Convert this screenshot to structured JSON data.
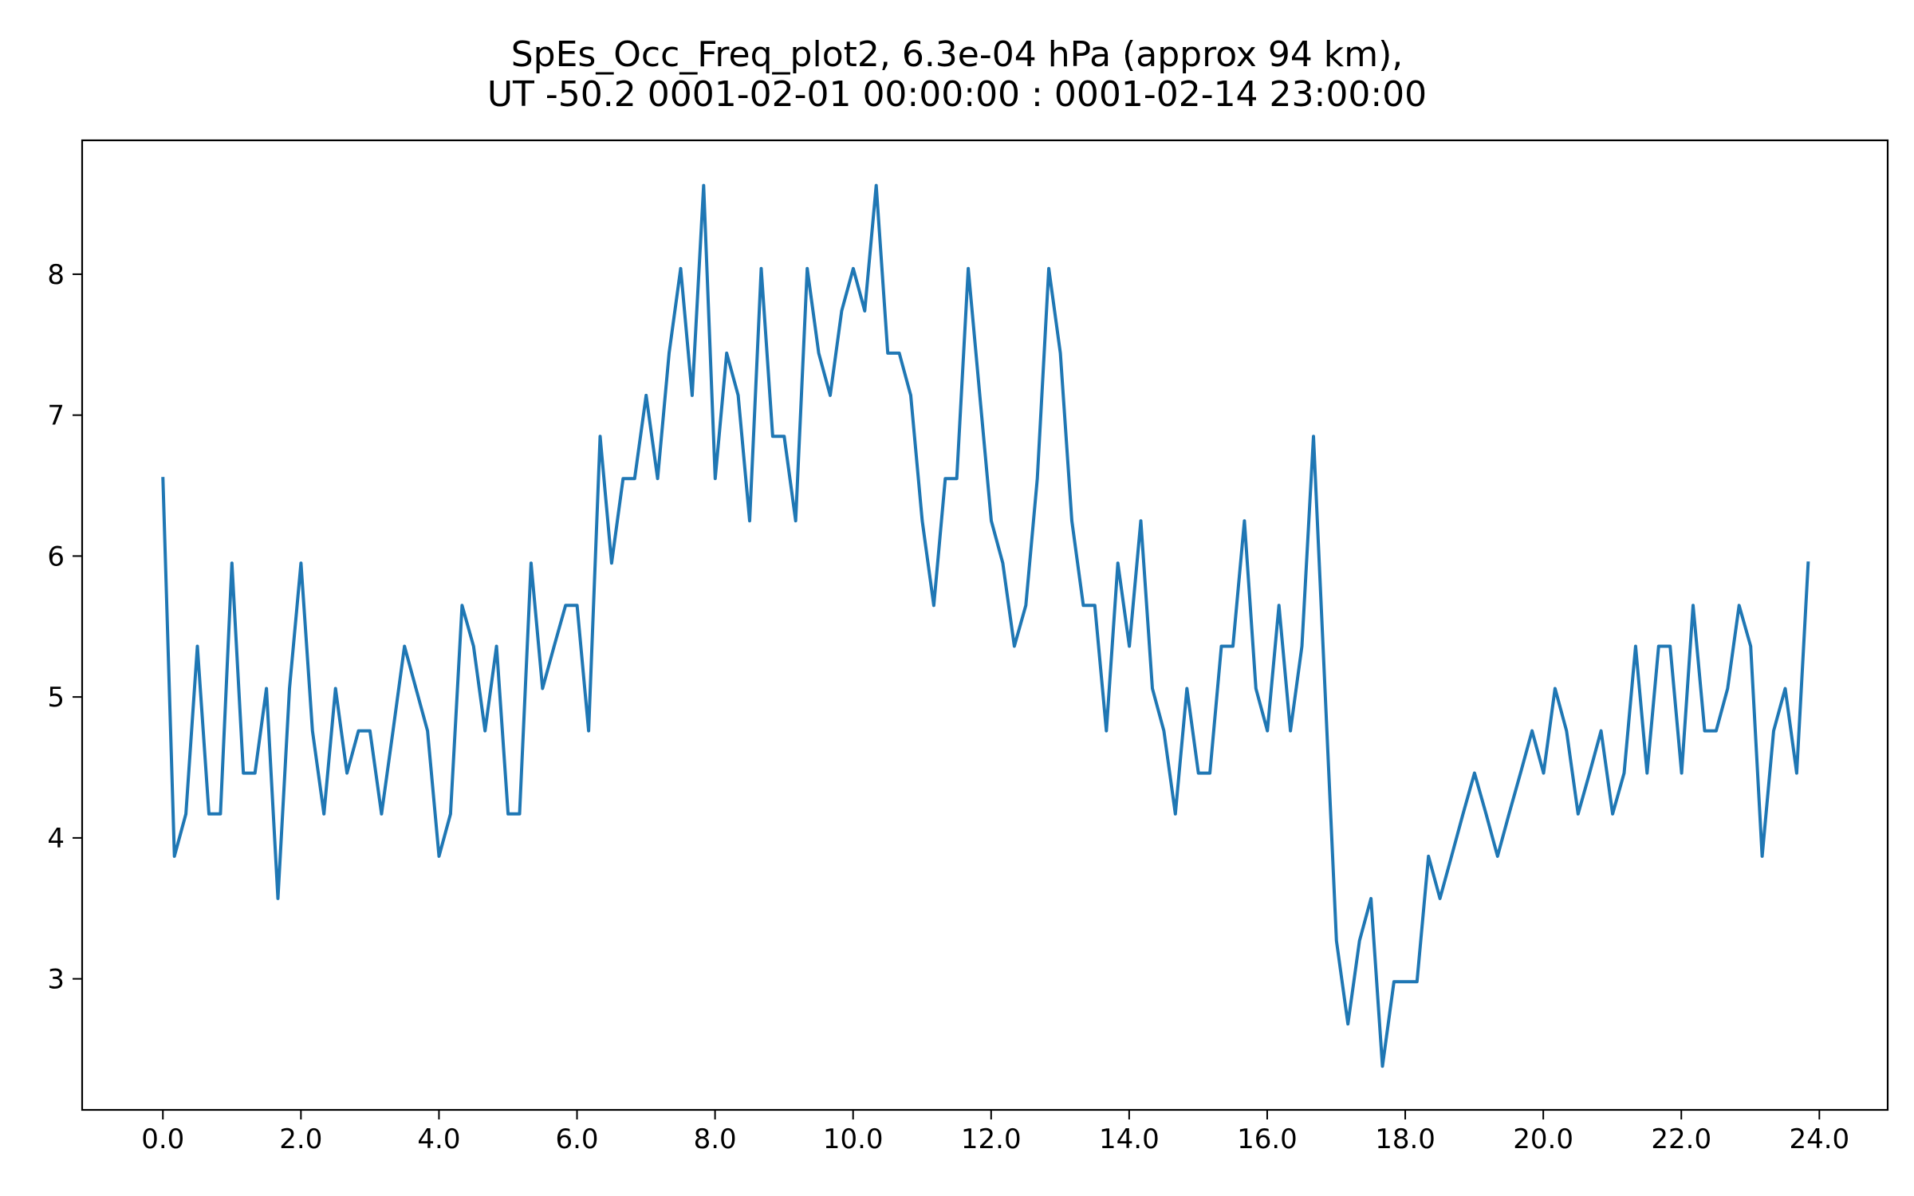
{
  "chart_data": {
    "type": "line",
    "title_line1": "SpEs_Occ_Freq_plot2, 6.3e-04 hPa (approx 94 km),",
    "title_line2": "UT -50.2 0001-02-01 00:00:00 : 0001-02-14 23:00:00",
    "xlabel": "",
    "ylabel": "",
    "xlim": [
      -1.17,
      24.99
    ],
    "ylim": [
      2.07,
      8.95
    ],
    "x_ticks": [
      "0.0",
      "2.0",
      "4.0",
      "6.0",
      "8.0",
      "10.0",
      "12.0",
      "14.0",
      "16.0",
      "18.0",
      "20.0",
      "22.0",
      "24.0"
    ],
    "y_ticks": [
      "3",
      "4",
      "5",
      "6",
      "7",
      "8"
    ],
    "grid": false,
    "x_step": 0.1667,
    "series": [
      {
        "color": "#1f77b4",
        "values": [
          6.55,
          3.87,
          4.17,
          5.36,
          4.17,
          4.17,
          5.95,
          4.46,
          4.46,
          5.06,
          3.57,
          5.06,
          5.95,
          4.76,
          4.17,
          5.06,
          4.46,
          4.76,
          4.76,
          4.17,
          4.76,
          5.36,
          5.06,
          4.76,
          3.87,
          4.17,
          5.65,
          5.36,
          4.76,
          5.36,
          4.17,
          4.17,
          5.95,
          5.06,
          5.36,
          5.65,
          5.65,
          4.76,
          6.85,
          5.95,
          6.55,
          6.55,
          7.14,
          6.55,
          7.44,
          8.04,
          7.14,
          8.63,
          6.55,
          7.44,
          7.14,
          6.25,
          8.04,
          6.85,
          6.85,
          6.25,
          8.04,
          7.44,
          7.14,
          7.74,
          8.04,
          7.74,
          8.63,
          7.44,
          7.44,
          7.14,
          6.25,
          5.65,
          6.55,
          6.55,
          8.04,
          7.14,
          6.25,
          5.95,
          5.36,
          5.65,
          6.55,
          8.04,
          7.44,
          6.25,
          5.65,
          5.65,
          4.76,
          5.95,
          5.36,
          6.25,
          5.06,
          4.76,
          4.17,
          5.06,
          4.46,
          4.46,
          5.36,
          5.36,
          6.25,
          5.06,
          4.76,
          5.65,
          4.76,
          5.36,
          6.85,
          5.06,
          3.27,
          2.68,
          3.27,
          3.57,
          2.38,
          2.98,
          2.98,
          2.98,
          3.87,
          3.57,
          3.87,
          4.17,
          4.46,
          4.17,
          3.87,
          4.17,
          4.46,
          4.76,
          4.46,
          5.06,
          4.76,
          4.17,
          4.46,
          4.76,
          4.17,
          4.46,
          5.36,
          4.46,
          5.36,
          5.36,
          4.46,
          5.65,
          4.76,
          4.76,
          5.06,
          5.65,
          5.36,
          3.87,
          4.76,
          5.06,
          4.46,
          5.95
        ]
      }
    ]
  }
}
